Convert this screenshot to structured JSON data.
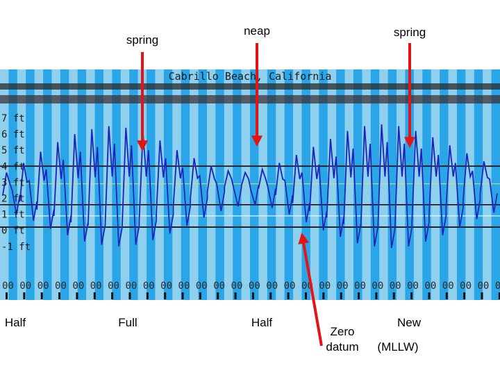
{
  "chart_data": {
    "type": "line",
    "title": "Cabrillo Beach, California",
    "y_tick_labels": [
      "7 ft",
      "6 ft",
      "5 ft",
      "4 ft",
      "3 ft",
      "2 ft",
      "1 ft",
      "0 ft",
      "-1 ft"
    ],
    "y_ticks": [
      7,
      6,
      5,
      4,
      3,
      2,
      1,
      0,
      -1
    ],
    "ylim": [
      -1.8,
      7.4
    ],
    "x_tick_label": "00",
    "x_tick_count": 29,
    "x_days": 29,
    "series": [
      {
        "color": "#1c1cd6",
        "approx_high_tide_ft": [
          3.6,
          4.2,
          4.9,
          5.5,
          6.0,
          6.3,
          6.5,
          6.4,
          6.1,
          5.6,
          5.0,
          4.5,
          4.0,
          3.7,
          3.6,
          3.8,
          4.2,
          4.7,
          5.2,
          5.7,
          6.2,
          6.5,
          6.6,
          6.5,
          6.2,
          5.8,
          5.3,
          4.8,
          4.3
        ],
        "approx_low_tide_ft": [
          1.0,
          0.6,
          0.1,
          -0.3,
          -0.7,
          -0.9,
          -1.0,
          -0.9,
          -0.6,
          -0.2,
          0.3,
          0.8,
          1.2,
          1.5,
          1.6,
          1.4,
          1.0,
          0.5,
          0.0,
          -0.4,
          -0.8,
          -1.0,
          -1.1,
          -1.0,
          -0.7,
          -0.3,
          0.2,
          0.7,
          1.1
        ]
      }
    ]
  },
  "annotations": {
    "top_labels": [
      "spring",
      "neap",
      "spring"
    ],
    "bottom_labels": [
      "Half",
      "Full",
      "Half",
      "Zero datum",
      "New"
    ],
    "mllw_label": "(MLLW)"
  },
  "colors": {
    "stripe_light": "#8fd0ef",
    "stripe_dark": "#2aa6e8",
    "tide_line": "#1c1cd6",
    "arrow": "#e31414",
    "hline": "#000000"
  }
}
